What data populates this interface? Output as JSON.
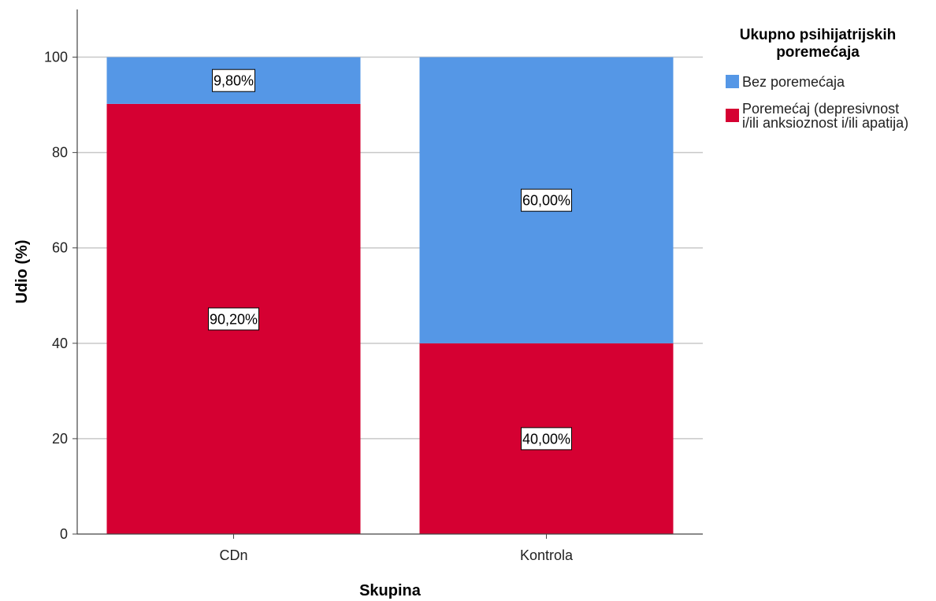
{
  "chart_data": {
    "type": "bar",
    "stacked": true,
    "categories": [
      "CDn",
      "Kontrola"
    ],
    "series": [
      {
        "name": "Poremećaj (depresivnost i/ili anksioznost i/ili apatija)",
        "values": [
          90.2,
          40.0
        ],
        "labels": [
          "90,20%",
          "40,00%"
        ],
        "color": "#d50032"
      },
      {
        "name": "Bez poremećaja",
        "values": [
          9.8,
          60.0
        ],
        "labels": [
          "9,80%",
          "60,00%"
        ],
        "color": "#5597e6"
      }
    ],
    "xlabel": "Skupina",
    "ylabel": "Udio (%)",
    "ylim": [
      0,
      110
    ],
    "yticks": [
      0,
      20,
      40,
      60,
      80,
      100
    ],
    "grid": true,
    "legend": {
      "title_lines": [
        "Ukupno psihijatrijskih",
        "poremećaja"
      ],
      "placement": "top-right",
      "items": [
        {
          "lines": [
            "Bez poremećaja"
          ],
          "color": "#5597e6"
        },
        {
          "lines": [
            "Poremećaj (depresivnost",
            "i/ili anksioznost i/ili apatija)"
          ],
          "color": "#d50032"
        }
      ]
    }
  }
}
